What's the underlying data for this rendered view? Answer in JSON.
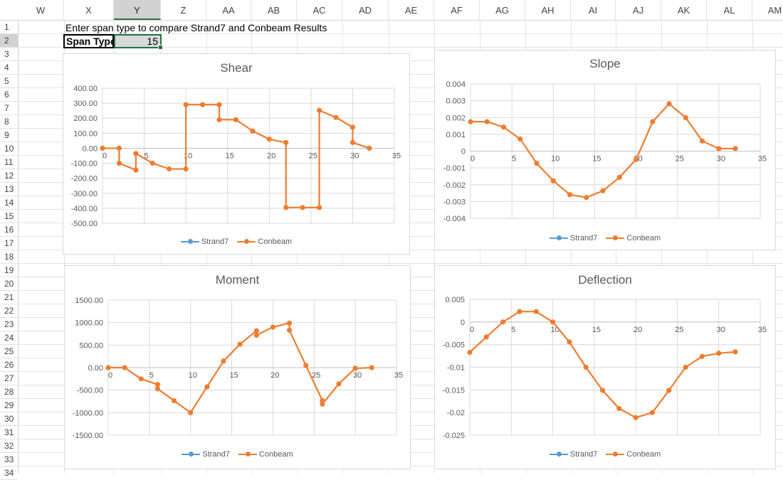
{
  "columns": [
    "W",
    "X",
    "Y",
    "Z",
    "AA",
    "AB",
    "AC",
    "AD",
    "AE",
    "AF",
    "AG",
    "AH",
    "AI",
    "AJ",
    "AK",
    "AL",
    "AM"
  ],
  "selected_column": "Y",
  "rows": [
    "1",
    "2",
    "3",
    "4",
    "5",
    "6",
    "7",
    "8",
    "9",
    "10",
    "11",
    "12",
    "13",
    "14",
    "15",
    "16",
    "17",
    "18",
    "19",
    "20",
    "21",
    "22",
    "23",
    "24",
    "25",
    "26",
    "27",
    "28",
    "29",
    "30",
    "31",
    "32",
    "33",
    "34"
  ],
  "selected_row": "2",
  "cells": {
    "heading": "Enter span type to compare Strand7 and Conbeam Results",
    "span_label": "Span Type",
    "span_value": "15"
  },
  "colors": {
    "strand7": "#5B9BD5",
    "conbeam": "#ED7D31",
    "accent": "#217346"
  },
  "chart_data": [
    {
      "id": "shear",
      "type": "line",
      "title": "Shear",
      "xlim": [
        0,
        35
      ],
      "ylim": [
        -500,
        400
      ],
      "xticks": [
        "0",
        "5",
        "10",
        "15",
        "20",
        "25",
        "30",
        "35"
      ],
      "yticks": [
        "400.00",
        "300.00",
        "200.00",
        "100.00",
        "0.00",
        "-100.00",
        "-200.00",
        "-300.00",
        "-400.00",
        "-500.00"
      ],
      "legend": [
        "Strand7",
        "Conbeam"
      ],
      "legend_position": "bottom",
      "series": [
        {
          "name": "Conbeam",
          "x": [
            0,
            2,
            2,
            4,
            4,
            6,
            8,
            10,
            10,
            12,
            14,
            14,
            16,
            18,
            20,
            22,
            22,
            24,
            26,
            26,
            28,
            30,
            30,
            32
          ],
          "y": [
            0,
            0,
            -100,
            -145,
            -35,
            -100,
            -138,
            -138,
            290,
            290,
            290,
            190,
            190,
            115,
            60,
            38,
            -395,
            -395,
            -395,
            252,
            205,
            140,
            38,
            0
          ]
        }
      ]
    },
    {
      "id": "slope",
      "type": "line",
      "title": "Slope",
      "xlim": [
        0,
        35
      ],
      "ylim": [
        -0.004,
        0.004
      ],
      "xticks": [
        "0",
        "5",
        "10",
        "15",
        "20",
        "25",
        "30",
        "35"
      ],
      "yticks": [
        "0.004",
        "0.003",
        "0.002",
        "0.001",
        "0",
        "-0.001",
        "-0.002",
        "-0.003",
        "-0.004"
      ],
      "legend": [
        "Strand7",
        "Conbeam"
      ],
      "legend_position": "bottom",
      "series": [
        {
          "name": "Conbeam",
          "x": [
            0,
            2,
            4,
            6,
            8,
            10,
            12,
            14,
            16,
            18,
            20,
            22,
            24,
            26,
            28,
            30,
            32
          ],
          "y": [
            0.00175,
            0.00175,
            0.00143,
            0.00072,
            -0.00073,
            -0.00177,
            -0.00259,
            -0.00276,
            -0.00236,
            -0.00156,
            -0.0005,
            0.00175,
            0.00282,
            0.00199,
            0.0006,
            0.00015,
            0.00015
          ]
        }
      ]
    },
    {
      "id": "moment",
      "type": "line",
      "title": "Moment",
      "xlim": [
        0,
        35
      ],
      "ylim": [
        -1500,
        1500
      ],
      "xticks": [
        "0",
        "5",
        "10",
        "15",
        "20",
        "25",
        "30",
        "35"
      ],
      "yticks": [
        "1500.00",
        "1000.00",
        "500.00",
        "0.00",
        "-500.00",
        "-1000.00",
        "-1500.00"
      ],
      "legend": [
        "Strand7",
        "Conbeam"
      ],
      "legend_position": "bottom",
      "series": [
        {
          "name": "Conbeam",
          "x": [
            0,
            2,
            4,
            6,
            6,
            8,
            10,
            12,
            14,
            16,
            18,
            18,
            20,
            22,
            22,
            24,
            26,
            26,
            28,
            30,
            32
          ],
          "y": [
            0,
            0,
            -250,
            -375,
            -470,
            -735,
            -1000,
            -425,
            145,
            520,
            820,
            720,
            900,
            990,
            830,
            50,
            -730,
            -810,
            -360,
            -15,
            0
          ]
        }
      ]
    },
    {
      "id": "deflection",
      "type": "line",
      "title": "Deflection",
      "xlim": [
        0,
        35
      ],
      "ylim": [
        -0.025,
        0.005
      ],
      "xticks": [
        "0",
        "5",
        "10",
        "15",
        "20",
        "25",
        "30",
        "35"
      ],
      "yticks": [
        "0.005",
        "0",
        "-0.005",
        "-0.01",
        "-0.015",
        "-0.02",
        "-0.025"
      ],
      "legend": [
        "Strand7",
        "Conbeam"
      ],
      "legend_position": "bottom",
      "series": [
        {
          "name": "Conbeam",
          "x": [
            0,
            2,
            4,
            6,
            8,
            10,
            12,
            14,
            16,
            18,
            20,
            22,
            24,
            26,
            28,
            30,
            32
          ],
          "y": [
            -0.0067,
            -0.0033,
            0,
            0.0023,
            0.0023,
            0,
            -0.0044,
            -0.01,
            -0.0151,
            -0.0191,
            -0.0211,
            -0.02,
            -0.0151,
            -0.01,
            -0.0076,
            -0.0069,
            -0.0066
          ]
        }
      ]
    }
  ]
}
